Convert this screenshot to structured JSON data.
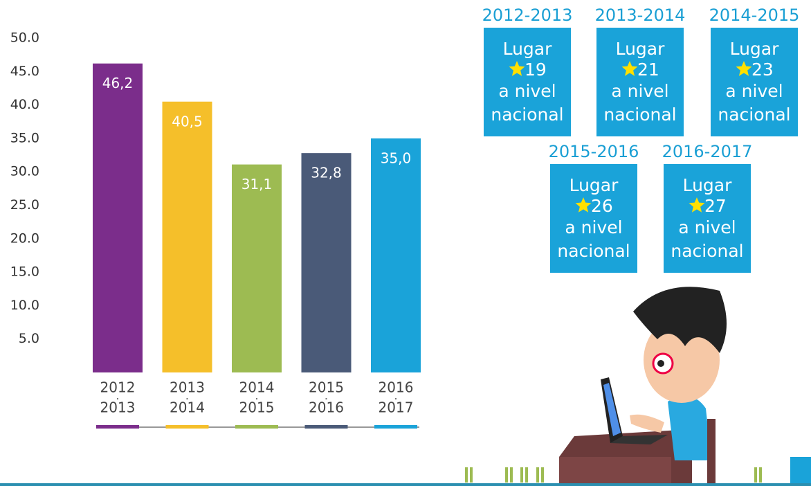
{
  "chart_data": {
    "type": "bar",
    "categories": [
      [
        "2012",
        "2013"
      ],
      [
        "2013",
        "2014"
      ],
      [
        "2014",
        "2015"
      ],
      [
        "2015",
        "2016"
      ],
      [
        "2016",
        "2017"
      ]
    ],
    "values": [
      46.2,
      40.5,
      31.1,
      32.8,
      35.0
    ],
    "value_labels": [
      "46,2",
      "40,5",
      "31,1",
      "32,8",
      "35,0"
    ],
    "colors": [
      "#7b2d8b",
      "#f5bf2a",
      "#9dbb52",
      "#4a5a78",
      "#1aa3d9"
    ],
    "ylim": [
      0,
      50
    ],
    "yticks": [
      {
        "value": 5,
        "label": "5.0"
      },
      {
        "value": 10,
        "label": "10.0"
      },
      {
        "value": 15,
        "label": "15.0"
      },
      {
        "value": 20,
        "label": "20.0"
      },
      {
        "value": 25,
        "label": "25.0"
      },
      {
        "value": 30,
        "label": "30.0"
      },
      {
        "value": 35,
        "label": "35.0"
      },
      {
        "value": 40,
        "label": "40.0"
      },
      {
        "value": 45,
        "label": "45.0"
      },
      {
        "value": 50,
        "label": "50.0"
      }
    ],
    "grid": false
  },
  "rankings": [
    {
      "period": "2012-2013",
      "label": "Lugar",
      "rank": 19,
      "line1": "a nivel",
      "line2": "nacional"
    },
    {
      "period": "2013-2014",
      "label": "Lugar",
      "rank": 21,
      "line1": "a nivel",
      "line2": "nacional"
    },
    {
      "period": "2014-2015",
      "label": "Lugar",
      "rank": 23,
      "line1": "a nivel",
      "line2": "nacional"
    },
    {
      "period": "2015-2016",
      "label": "Lugar",
      "rank": 26,
      "line1": "a nivel",
      "line2": "nacional"
    },
    {
      "period": "2016-2017",
      "label": "Lugar",
      "rank": 27,
      "line1": "a nivel",
      "line2": "nacional"
    }
  ]
}
